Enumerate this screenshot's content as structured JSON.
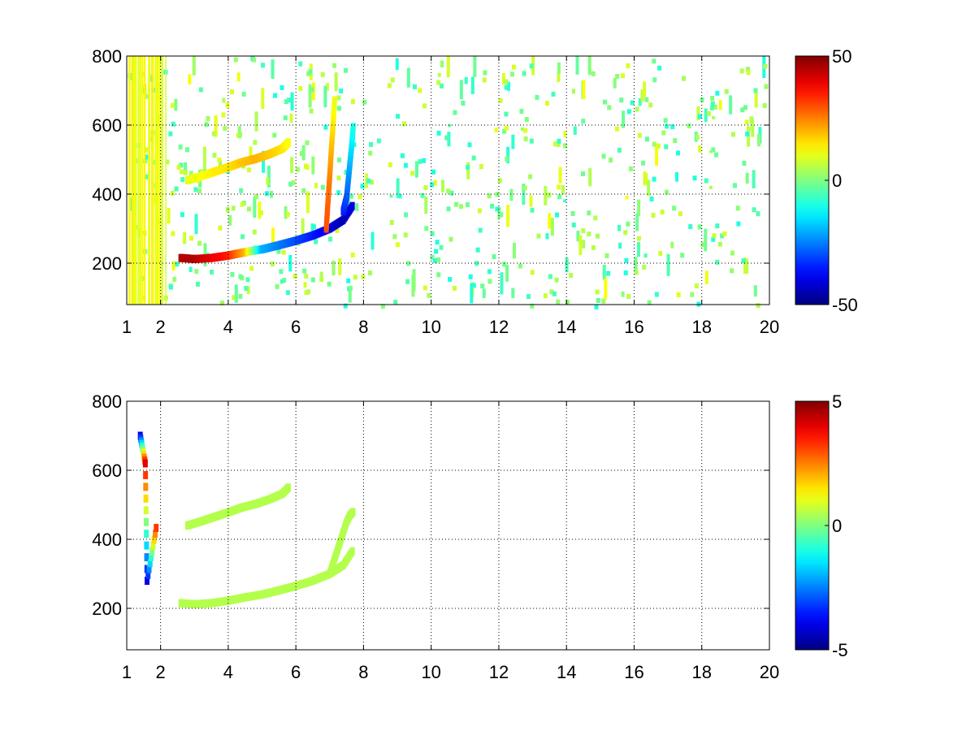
{
  "chart_data": [
    {
      "type": "heatmap",
      "title": "",
      "xlabel": "",
      "ylabel": "",
      "xlim": [
        1,
        20
      ],
      "ylim": [
        80,
        800
      ],
      "xticks": [
        1,
        2,
        4,
        6,
        8,
        10,
        12,
        14,
        16,
        18,
        20
      ],
      "yticks": [
        200,
        400,
        600,
        800
      ],
      "grid": true,
      "colormap": "jet",
      "clim": [
        -50,
        50
      ],
      "colorbar_ticks": [
        -50,
        0,
        50
      ],
      "features": [
        {
          "name": "lower-branch",
          "x": [
            2.6,
            3.0,
            3.5,
            4.0,
            4.5,
            5.0,
            5.5,
            6.0,
            6.5,
            7.0,
            7.4,
            7.7
          ],
          "y": [
            215,
            212,
            215,
            222,
            232,
            240,
            252,
            265,
            280,
            300,
            325,
            370
          ],
          "value": [
            45,
            45,
            40,
            35,
            20,
            -20,
            -25,
            -30,
            -35,
            -40,
            -45,
            -40
          ]
        },
        {
          "name": "upper-branch",
          "x": [
            2.8,
            3.2,
            3.6,
            4.0,
            4.4,
            4.8,
            5.2,
            5.6,
            5.8
          ],
          "y": [
            440,
            452,
            465,
            478,
            492,
            502,
            515,
            532,
            552
          ],
          "value": [
            10,
            12,
            14,
            15,
            18,
            20,
            18,
            15,
            12
          ]
        },
        {
          "name": "right-column-1",
          "x": [
            6.9,
            6.95,
            7.0,
            7.05,
            7.1,
            7.15
          ],
          "y": [
            300,
            380,
            450,
            530,
            600,
            680
          ],
          "value": [
            30,
            28,
            25,
            20,
            15,
            10
          ]
        },
        {
          "name": "right-column-2",
          "x": [
            7.4,
            7.5,
            7.55,
            7.6,
            7.65,
            7.7
          ],
          "y": [
            350,
            390,
            440,
            490,
            540,
            600
          ],
          "value": [
            -35,
            -30,
            -25,
            -20,
            -15,
            -10
          ]
        }
      ]
    },
    {
      "type": "heatmap",
      "title": "",
      "xlabel": "",
      "ylabel": "",
      "xlim": [
        1,
        20
      ],
      "ylim": [
        80,
        800
      ],
      "xticks": [
        1,
        2,
        4,
        6,
        8,
        10,
        12,
        14,
        16,
        18,
        20
      ],
      "yticks": [
        200,
        400,
        600,
        800
      ],
      "grid": true,
      "colormap": "jet",
      "clim": [
        -5,
        5
      ],
      "colorbar_ticks": [
        -5,
        0,
        5
      ],
      "features": [
        {
          "name": "lower-branch",
          "x": [
            2.6,
            3.0,
            3.5,
            4.0,
            4.5,
            5.0,
            5.5,
            6.0,
            6.5,
            7.0,
            7.4,
            7.7
          ],
          "y": [
            215,
            212,
            215,
            222,
            232,
            240,
            252,
            265,
            280,
            300,
            325,
            370
          ],
          "value": [
            0.5,
            0.5,
            0.5,
            0.5,
            0.5,
            0.5,
            0.5,
            0.5,
            0.5,
            0.5,
            0.5,
            0.5
          ]
        },
        {
          "name": "upper-branch",
          "x": [
            2.8,
            3.2,
            3.6,
            4.0,
            4.4,
            4.8,
            5.2,
            5.6,
            5.8
          ],
          "y": [
            440,
            452,
            465,
            478,
            492,
            502,
            515,
            532,
            552
          ],
          "value": [
            0.5,
            0.5,
            0.5,
            0.5,
            0.5,
            0.5,
            0.5,
            0.5,
            0.5
          ]
        },
        {
          "name": "right-column",
          "x": [
            7.0,
            7.1,
            7.2,
            7.3,
            7.4,
            7.5,
            7.6,
            7.7
          ],
          "y": [
            300,
            330,
            360,
            390,
            420,
            450,
            470,
            480
          ],
          "value": [
            0.5,
            0.5,
            0.5,
            0.5,
            0.5,
            0.5,
            0.5,
            0.5
          ]
        },
        {
          "name": "left-streaks",
          "x": [
            1.4,
            1.55,
            1.6,
            1.9
          ],
          "y": [
            700,
            620,
            280,
            450
          ],
          "value": [
            -4,
            4,
            -4,
            4
          ]
        }
      ]
    }
  ]
}
